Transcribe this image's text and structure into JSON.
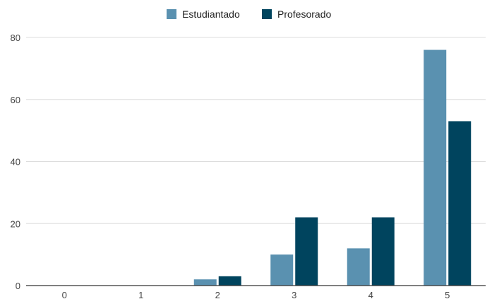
{
  "chart_data": {
    "type": "bar",
    "title": "",
    "xlabel": "",
    "ylabel": "",
    "categories": [
      "0",
      "1",
      "2",
      "3",
      "4",
      "5"
    ],
    "series": [
      {
        "name": "Estudiantado",
        "values": [
          0,
          0,
          2,
          10,
          12,
          76
        ]
      },
      {
        "name": "Profesorado",
        "values": [
          0,
          0,
          3,
          22,
          22,
          53
        ]
      }
    ],
    "ylim": [
      0,
      80
    ],
    "yticks": [
      0,
      20,
      40,
      60,
      80
    ],
    "grid": true,
    "legend_position": "top",
    "colors": {
      "Estudiantado": "#5a91b0",
      "Profesorado": "#00445e",
      "grid": "#dddddd",
      "axis": "#333333"
    }
  }
}
